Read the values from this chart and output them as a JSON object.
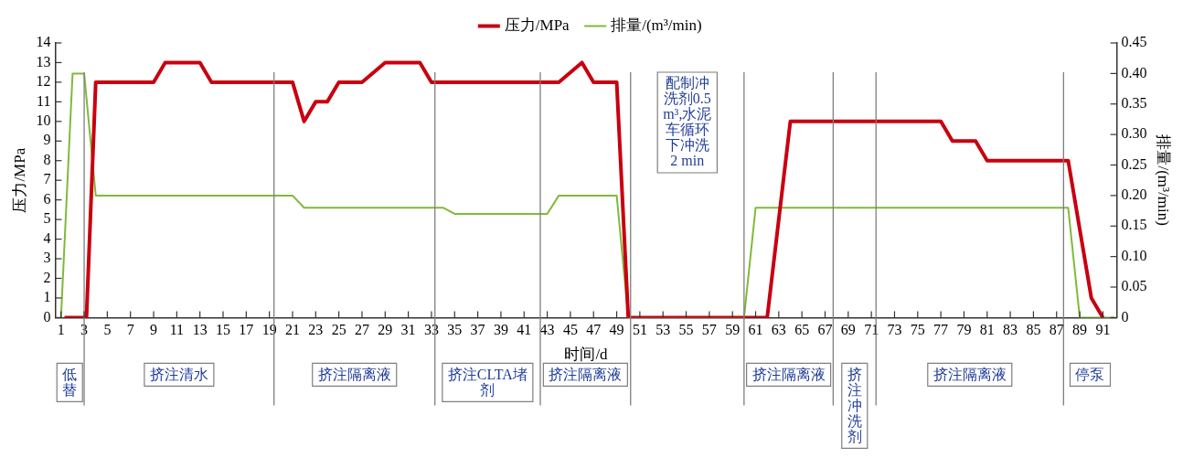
{
  "chart_data": {
    "type": "line",
    "xlabel": "时间/d",
    "ylabel": "压力/MPa",
    "y2label": "排量/(m³/min)",
    "legend": "top",
    "marker": "none",
    "xlim": [
      0.5,
      92.2
    ],
    "xticks": [
      1,
      3,
      5,
      7,
      9,
      11,
      13,
      15,
      17,
      19,
      21,
      23,
      25,
      27,
      29,
      31,
      33,
      35,
      37,
      39,
      41,
      43,
      45,
      47,
      49,
      51,
      53,
      55,
      57,
      59,
      61,
      63,
      65,
      67,
      69,
      71,
      73,
      75,
      77,
      79,
      81,
      83,
      85,
      87,
      89,
      91
    ],
    "ylim": [
      0,
      14
    ],
    "yticks": [
      0,
      1,
      2,
      3,
      4,
      5,
      6,
      7,
      8,
      9,
      10,
      11,
      12,
      13,
      14
    ],
    "y2lim": [
      0,
      0.45
    ],
    "y2ticks": [
      0,
      0.05,
      {
        "value": 0.1,
        "label": "0.10"
      },
      0.15,
      {
        "value": 0.2,
        "label": "0.20"
      },
      0.25,
      {
        "value": 0.3,
        "label": "0.30"
      },
      0.35,
      {
        "value": 0.4,
        "label": "0.40"
      },
      0.45
    ],
    "series": [
      {
        "name": "压力/MPa",
        "color": "#c8000f",
        "x": [
          1.3,
          3.2,
          4,
          9,
          10,
          13,
          14,
          21,
          22,
          23,
          24,
          25,
          27,
          29,
          32,
          33,
          44,
          46,
          47,
          49,
          50,
          62,
          64,
          77,
          78,
          80,
          81,
          88,
          90,
          91
        ],
        "values": [
          0,
          0,
          12,
          12,
          13,
          13,
          12,
          12,
          10,
          11,
          11,
          12,
          12,
          13,
          13,
          12,
          12,
          13,
          12,
          12,
          0,
          0,
          10,
          10,
          9,
          9,
          8,
          8,
          1,
          0
        ]
      },
      {
        "name": "排量/(m³/min)",
        "color": "#7fba3a",
        "axis": "y2",
        "x": [
          1,
          2,
          3,
          4,
          21,
          22,
          34,
          35,
          43,
          44,
          49,
          50,
          60,
          61,
          88,
          89,
          92
        ],
        "values": [
          0,
          0.4,
          0.4,
          0.2,
          0.2,
          0.18,
          0.18,
          0.17,
          0.17,
          0.2,
          0.2,
          0,
          0,
          0.18,
          0.18,
          0,
          0
        ]
      }
    ],
    "ref_lines": [
      {
        "axis": "x",
        "value": 3
      },
      {
        "axis": "x",
        "value": 19.4
      },
      {
        "axis": "x",
        "value": 33.3
      },
      {
        "axis": "x",
        "value": 42.4
      },
      {
        "axis": "x",
        "value": 50.2
      },
      {
        "axis": "x",
        "value": 60
      },
      {
        "axis": "x",
        "value": 67.7
      },
      {
        "axis": "x",
        "value": 71.4
      },
      {
        "axis": "x",
        "value": 87.6
      }
    ],
    "annotations": [
      "低替",
      "挤注清水",
      "挤注隔离液",
      "挤注CLTA堵剂",
      "挤注隔离液",
      "配制冲洗剂0.5 m³,水泥车循环下冲洗2 min",
      "挤注隔离液",
      "挤注冲洗剂",
      "挤注隔离液",
      "停泵"
    ]
  }
}
